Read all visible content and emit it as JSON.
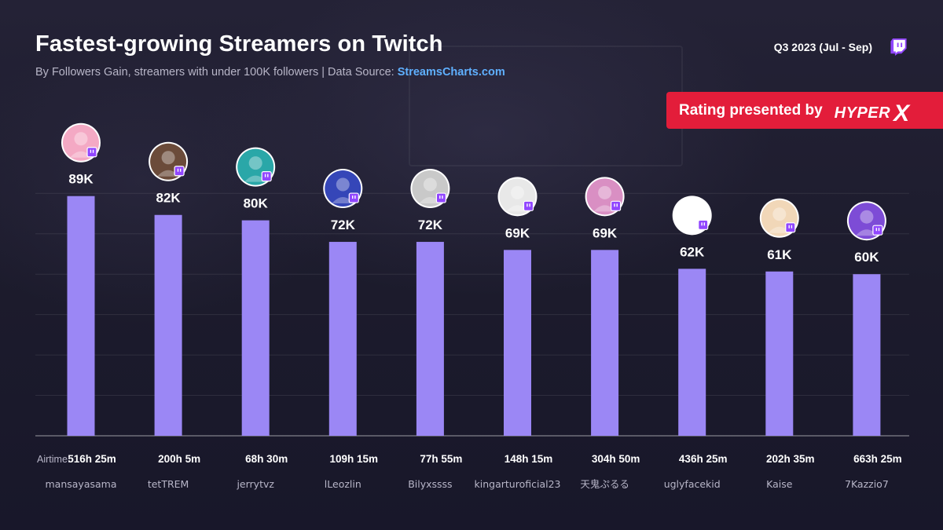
{
  "header": {
    "title": "Fastest-growing Streamers on Twitch",
    "subtitle_prefix": "By Followers Gain, streamers with under 100K followers  |  Data Source: ",
    "subtitle_source": "StreamsCharts.com",
    "period": "Q3 2023 (Jul - Sep)",
    "platform_icon": "twitch-icon"
  },
  "sponsor": {
    "label": "Rating presented by",
    "brand": "HYPER",
    "brand_mark": "X",
    "color": "#e31d3a"
  },
  "chart_data": {
    "type": "bar",
    "categories": [
      "mansayasama",
      "tetTREM",
      "jerrytvz",
      "lLeozlin",
      "Bilyxssss",
      "kingarturoficial23",
      "天鬼ぷるる",
      "uglyfacekid",
      "Kaise",
      "7Kazzio7"
    ],
    "values": [
      89,
      82,
      80,
      72,
      72,
      69,
      69,
      62,
      61,
      60
    ],
    "value_labels": [
      "89K",
      "82K",
      "80K",
      "72K",
      "72K",
      "69K",
      "69K",
      "62K",
      "61K",
      "60K"
    ],
    "airtime_label": "Airtime:",
    "airtime": [
      "516h 25m",
      "200h 5m",
      "68h 30m",
      "109h 15m",
      "77h 55m",
      "148h 15m",
      "304h 50m",
      "436h 25m",
      "202h 35m",
      "663h 25m"
    ],
    "avatar_colors": [
      "#f4a9c4",
      "#6b4b3a",
      "#2aa7a8",
      "#3546b8",
      "#c9c9c9",
      "#e8e8e8",
      "#d98fc3",
      "#ffffff",
      "#f1d7b8",
      "#7d4cd6"
    ],
    "ylim": [
      0,
      100
    ],
    "grid": true,
    "bar_color": "#9b87f5"
  }
}
